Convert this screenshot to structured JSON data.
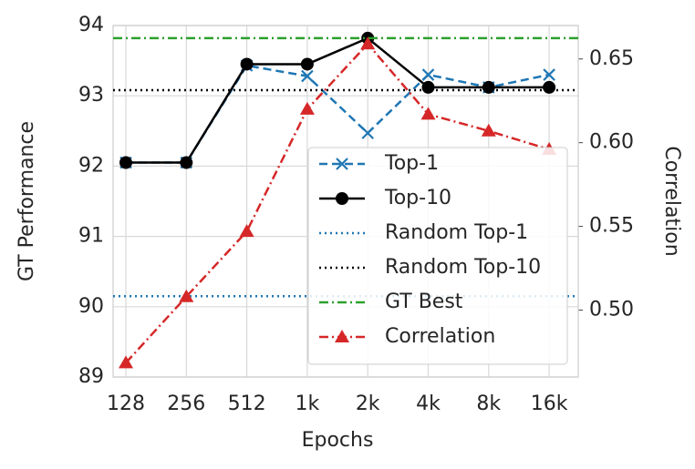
{
  "chart_data": {
    "type": "line",
    "xlabel": "Epochs",
    "ylabel": "GT Performance",
    "y2label": "Correlation",
    "categories": [
      "128",
      "256",
      "512",
      "1k",
      "2k",
      "4k",
      "8k",
      "16k"
    ],
    "ylim": [
      89,
      94
    ],
    "yticks": [
      89,
      90,
      91,
      92,
      93,
      94
    ],
    "y2lim": [
      0.46,
      0.67
    ],
    "y2ticks": [
      {
        "value": 0.5,
        "label": "0.50"
      },
      0.55,
      {
        "value": 0.6,
        "label": "0.60"
      },
      0.65
    ],
    "grid": true,
    "legend": "lower right",
    "series": [
      {
        "name": "Top-1",
        "color": "#1f77b4",
        "dash": "dashed",
        "marker": "x",
        "values": [
          92.05,
          92.05,
          93.43,
          93.28,
          92.47,
          93.3,
          93.12,
          93.3
        ]
      },
      {
        "name": "Top-10",
        "color": "#000000",
        "dash": "solid",
        "marker": "o",
        "values": [
          92.05,
          92.05,
          93.45,
          93.45,
          93.82,
          93.12,
          93.12,
          93.12
        ]
      },
      {
        "name": "Random Top-1",
        "color": "#1f77b4",
        "dash": "dotted",
        "value": 90.15
      },
      {
        "name": "Random Top-10",
        "color": "#000000",
        "dash": "dotted",
        "value": 93.08
      },
      {
        "name": "GT Best",
        "color": "#2ca02c",
        "dash": "dashdot",
        "value": 93.82
      },
      {
        "name": "Correlation",
        "color": "#d62728",
        "dash": "dashdot",
        "marker": "^",
        "axis": "y2",
        "values": [
          0.4685,
          0.508,
          0.547,
          0.62,
          0.659,
          0.617,
          0.607,
          0.596
        ]
      }
    ]
  }
}
